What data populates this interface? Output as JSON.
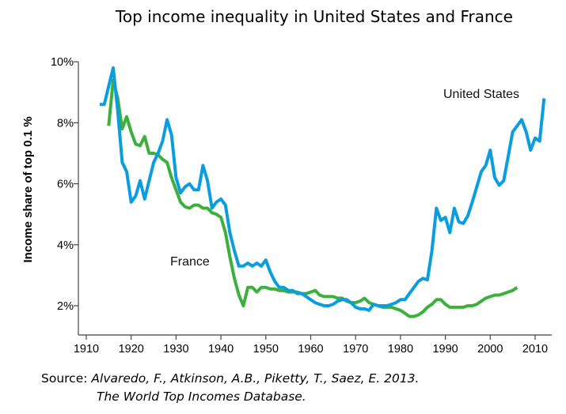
{
  "chart_data": {
    "type": "line",
    "title": "Top income inequality in United States and France",
    "xlabel": "",
    "ylabel": "Income share of top 0.1 %",
    "xlim": [
      1910,
      2015
    ],
    "ylim": [
      1,
      10
    ],
    "x_ticks": [
      "1910",
      "1920",
      "1930",
      "1940",
      "1950",
      "1960",
      "1970",
      "1980",
      "1990",
      "2000",
      "2010"
    ],
    "y_ticks": [
      {
        "v": 2,
        "label": "2%"
      },
      {
        "v": 4,
        "label": "4%"
      },
      {
        "v": 6,
        "label": "6%"
      },
      {
        "v": 8,
        "label": "8%"
      },
      {
        "v": 10,
        "label": "10%"
      }
    ],
    "grid": false,
    "series": [
      {
        "name": "United States",
        "color": "#0a9de0",
        "x_start": 1913,
        "values": [
          8.6,
          8.6,
          9.2,
          9.8,
          8.4,
          6.7,
          6.4,
          5.4,
          5.6,
          6.1,
          5.5,
          6.1,
          6.7,
          7.0,
          7.4,
          8.1,
          7.6,
          6.2,
          5.7,
          5.9,
          6.0,
          5.8,
          5.8,
          6.6,
          6.1,
          5.2,
          5.4,
          5.5,
          5.3,
          4.4,
          3.8,
          3.3,
          3.3,
          3.4,
          3.3,
          3.4,
          3.3,
          3.5,
          3.1,
          2.8,
          2.6,
          2.6,
          2.5,
          2.5,
          2.4,
          2.4,
          2.3,
          2.2,
          2.1,
          2.05,
          2.0,
          2.0,
          2.05,
          2.15,
          2.2,
          2.2,
          2.1,
          1.95,
          1.9,
          1.9,
          1.85,
          2.05,
          2.0,
          2.0,
          2.0,
          2.05,
          2.1,
          2.2,
          2.2,
          2.4,
          2.6,
          2.8,
          2.9,
          2.85,
          3.8,
          5.2,
          4.8,
          4.9,
          4.4,
          5.2,
          4.75,
          4.7,
          4.95,
          5.4,
          5.9,
          6.4,
          6.6,
          7.1,
          6.2,
          5.95,
          6.1,
          6.9,
          7.7,
          7.9,
          8.1,
          7.7,
          7.1,
          7.5,
          7.4,
          8.8
        ]
      },
      {
        "name": "France",
        "color": "#3cb03c",
        "x_start": 1915,
        "values": [
          7.9,
          9.4,
          8.8,
          7.8,
          8.2,
          7.7,
          7.3,
          7.25,
          7.55,
          7.0,
          7.0,
          6.95,
          6.8,
          6.7,
          6.2,
          5.8,
          5.4,
          5.25,
          5.2,
          5.3,
          5.3,
          5.2,
          5.2,
          5.05,
          5.0,
          4.9,
          4.4,
          3.6,
          2.9,
          2.35,
          2.0,
          2.6,
          2.6,
          2.45,
          2.6,
          2.6,
          2.55,
          2.55,
          2.5,
          2.5,
          2.45,
          2.45,
          2.45,
          2.4,
          2.4,
          2.45,
          2.5,
          2.35,
          2.3,
          2.3,
          2.3,
          2.25,
          2.25,
          2.15,
          2.1,
          2.1,
          2.15,
          2.25,
          2.1,
          2.05,
          2.0,
          1.95,
          1.95,
          1.95,
          1.9,
          1.85,
          1.75,
          1.65,
          1.65,
          1.7,
          1.8,
          1.95,
          2.05,
          2.2,
          2.2,
          2.05,
          1.95,
          1.95,
          1.95,
          1.95,
          2.0,
          2.0,
          2.05,
          2.15,
          2.25,
          2.3,
          2.35,
          2.35,
          2.4,
          2.45,
          2.5,
          2.6
        ]
      }
    ],
    "annotations": [
      "United States",
      "France"
    ]
  },
  "source": {
    "label": "Source:",
    "line1": "Alvaredo, F., Atkinson, A.B., Piketty, T., Saez, E. 2013.",
    "line2": "The World Top Incomes Database."
  }
}
